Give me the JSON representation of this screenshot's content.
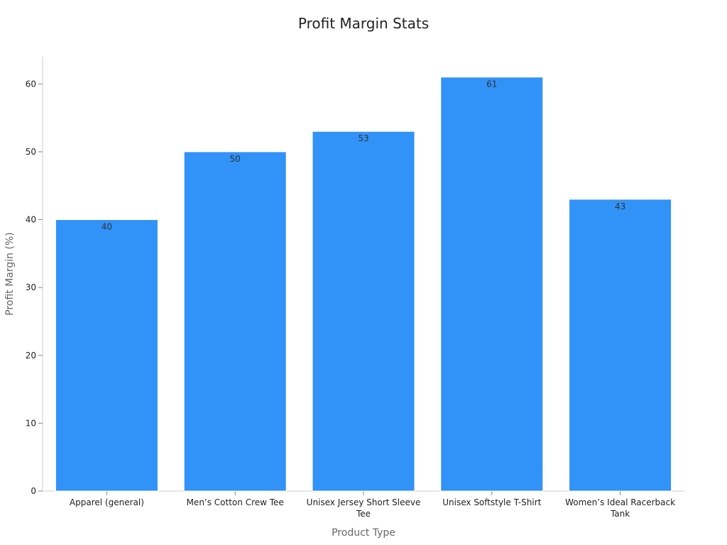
{
  "chart_data": {
    "type": "bar",
    "title": "Profit Margin Stats",
    "xlabel": "Product Type",
    "ylabel": "Profit Margin (%)",
    "categories": [
      "Apparel (general)",
      "Men’s Cotton Crew Tee",
      "Unisex Jersey Short Sleeve Tee",
      "Unisex Softstyle T-Shirt",
      "Women’s Ideal Racerback Tank"
    ],
    "values": [
      40,
      50,
      53,
      61,
      43
    ],
    "data_labels": [
      "40",
      "50",
      "53",
      "61",
      "43"
    ],
    "ylim": [
      0,
      64
    ],
    "yticks": [
      0,
      10,
      20,
      30,
      40,
      50,
      60
    ],
    "bar_color": "#3192F7",
    "grid": false,
    "legend": "none"
  }
}
